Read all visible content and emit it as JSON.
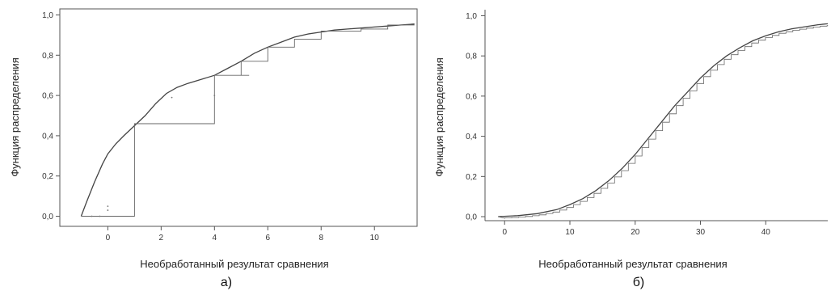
{
  "chart_data": [
    {
      "type": "line",
      "panel_label": "а)",
      "xlabel": "Необработанный результат сравнения",
      "ylabel": "Функция распределения",
      "xlim": [
        -1.8,
        11.6
      ],
      "ylim": [
        -0.05,
        1.03
      ],
      "x_ticks": [
        {
          "value": 0,
          "label": "0"
        },
        {
          "value": 2,
          "label": "2"
        },
        {
          "value": 4,
          "label": "4"
        },
        {
          "value": 6,
          "label": "6"
        },
        {
          "value": 8,
          "label": "8"
        },
        {
          "value": 10,
          "label": "10"
        }
      ],
      "y_ticks": [
        {
          "value": 0.0,
          "label": "0,0"
        },
        {
          "value": 0.2,
          "label": "0,2"
        },
        {
          "value": 0.4,
          "label": "0,4"
        },
        {
          "value": 0.6,
          "label": "0,6"
        },
        {
          "value": 0.8,
          "label": "0,8"
        },
        {
          "value": 1.0,
          "label": "1,0"
        }
      ],
      "grid": false,
      "series": [
        {
          "kind": "smooth",
          "x": [
            -1.0,
            -0.8,
            -0.5,
            -0.2,
            0.0,
            0.3,
            0.6,
            1.0,
            1.4,
            1.8,
            2.2,
            2.6,
            3.0,
            3.5,
            4.0,
            4.5,
            5.0,
            5.5,
            6.0,
            6.5,
            7.0,
            7.5,
            8.0,
            8.5,
            9.0,
            9.5,
            10.0,
            10.5,
            11.0,
            11.5
          ],
          "y": [
            0.0,
            0.07,
            0.17,
            0.26,
            0.31,
            0.36,
            0.4,
            0.45,
            0.5,
            0.56,
            0.61,
            0.64,
            0.66,
            0.68,
            0.7,
            0.735,
            0.77,
            0.81,
            0.84,
            0.865,
            0.89,
            0.905,
            0.915,
            0.925,
            0.93,
            0.935,
            0.94,
            0.945,
            0.95,
            0.955
          ]
        },
        {
          "kind": "step",
          "points": [
            [
              -1.0,
              0.0
            ],
            [
              -0.2,
              0.0
            ],
            [
              1.0,
              0.46
            ],
            [
              3.0,
              0.46
            ],
            [
              4.0,
              0.7
            ],
            [
              5.3,
              0.7
            ],
            [
              5.0,
              0.77
            ],
            [
              6.0,
              0.77
            ],
            [
              6.0,
              0.84
            ],
            [
              7.0,
              0.84
            ],
            [
              7.0,
              0.88
            ],
            [
              8.0,
              0.88
            ],
            [
              8.0,
              0.92
            ],
            [
              9.5,
              0.92
            ],
            [
              9.5,
              0.93
            ],
            [
              10.5,
              0.93
            ],
            [
              10.5,
              0.95
            ],
            [
              11.5,
              0.95
            ]
          ]
        }
      ],
      "stray_points": [
        {
          "x": -0.6,
          "y": 0.0
        },
        {
          "x": -0.3,
          "y": 0.0
        },
        {
          "x": 0.0,
          "y": 0.03
        },
        {
          "x": 0.0,
          "y": 0.05
        },
        {
          "x": 4.0,
          "y": 0.6
        },
        {
          "x": 2.4,
          "y": 0.59
        }
      ]
    },
    {
      "type": "line",
      "panel_label": "б)",
      "xlabel": "Необработанный результат сравнения",
      "ylabel": "Функция распределения",
      "xlim": [
        -3,
        49.5
      ],
      "ylim": [
        -0.02,
        1.03
      ],
      "x_ticks": [
        {
          "value": 0,
          "label": "0"
        },
        {
          "value": 10,
          "label": "10"
        },
        {
          "value": 20,
          "label": "20"
        },
        {
          "value": 30,
          "label": "30"
        },
        {
          "value": 40,
          "label": "40"
        }
      ],
      "y_ticks": [
        {
          "value": 0.0,
          "label": "0,0"
        },
        {
          "value": 0.2,
          "label": "0,2"
        },
        {
          "value": 0.4,
          "label": "0,4"
        },
        {
          "value": 0.6,
          "label": "0,6"
        },
        {
          "value": 0.8,
          "label": "0,8"
        },
        {
          "value": 1.0,
          "label": "1,0"
        }
      ],
      "grid": false,
      "series": [
        {
          "kind": "smooth",
          "x": [
            -1,
            2,
            5,
            8,
            10,
            12,
            14,
            16,
            18,
            20,
            22,
            24,
            26,
            28,
            30,
            32,
            34,
            36,
            38,
            40,
            42,
            44,
            46,
            48,
            49.5
          ],
          "y": [
            0.0,
            0.005,
            0.015,
            0.035,
            0.06,
            0.09,
            0.13,
            0.18,
            0.24,
            0.31,
            0.39,
            0.47,
            0.55,
            0.62,
            0.69,
            0.75,
            0.8,
            0.84,
            0.875,
            0.9,
            0.92,
            0.935,
            0.945,
            0.955,
            0.96
          ]
        },
        {
          "kind": "staircase",
          "x_from": -1,
          "x_to": 49.5,
          "step": 1.05
        }
      ]
    }
  ]
}
